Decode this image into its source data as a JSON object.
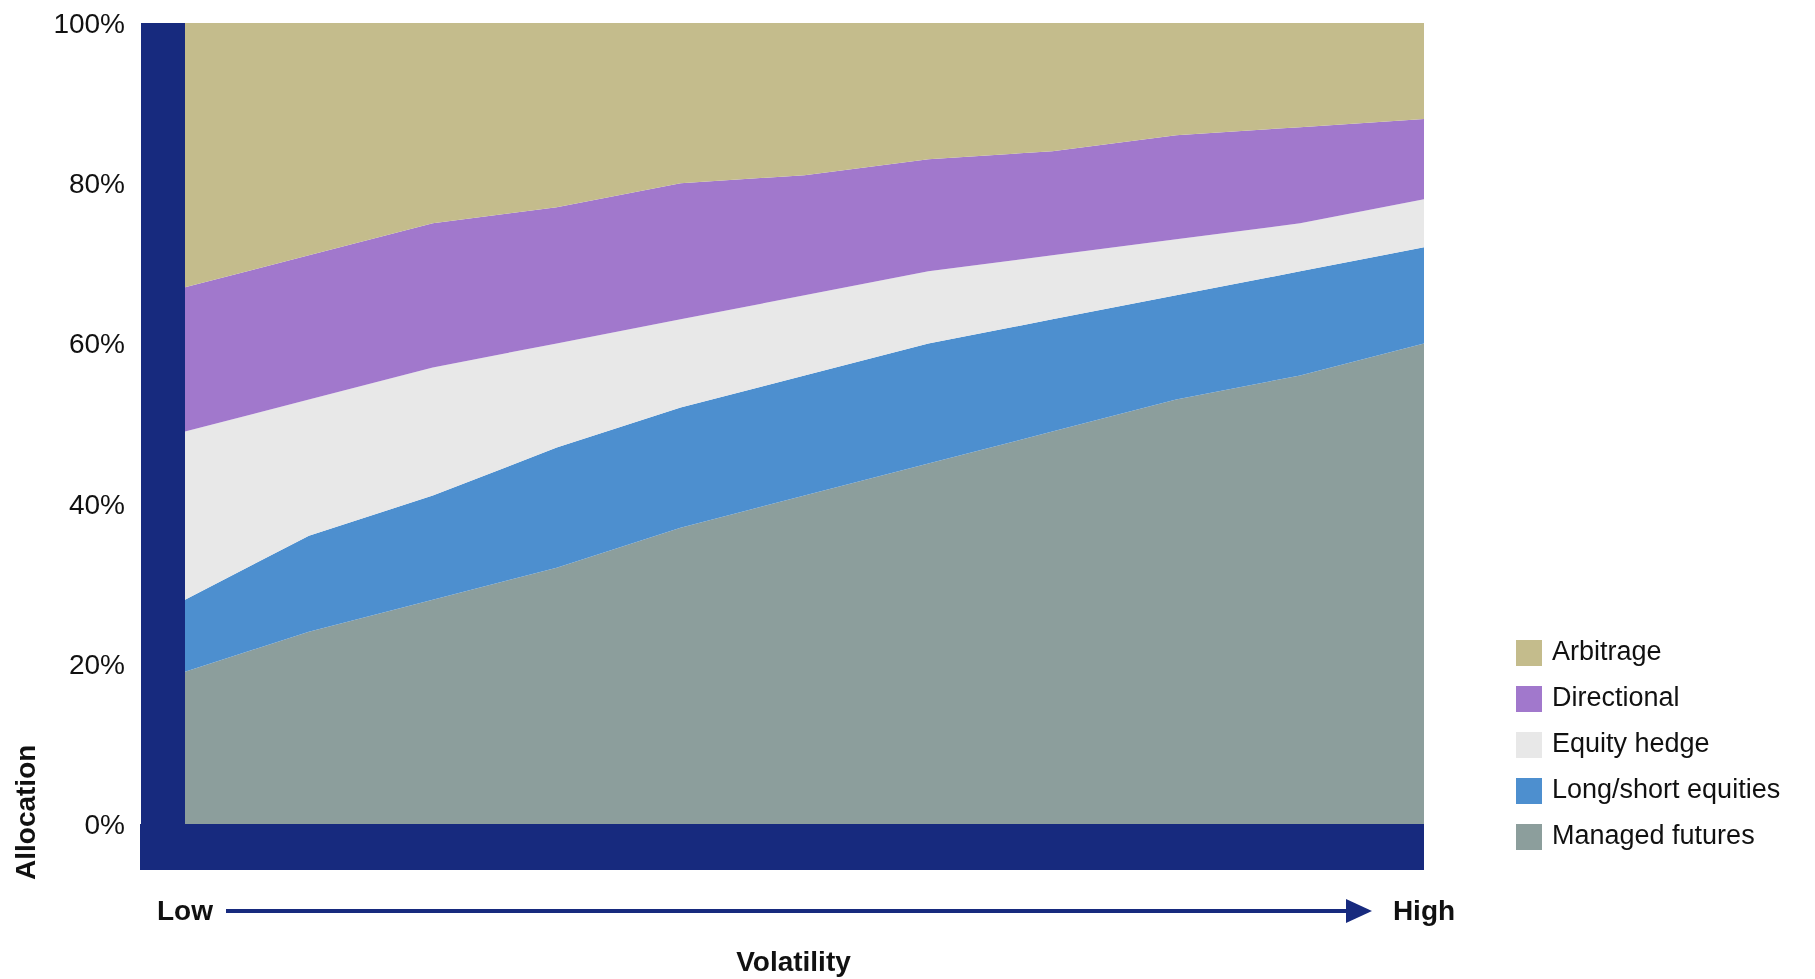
{
  "chart_data": {
    "type": "area",
    "stacked": true,
    "xlabel": "Volatility",
    "ylabel": "Allocation",
    "categories": [
      "Low",
      null,
      null,
      null,
      null,
      null,
      null,
      null,
      null,
      null,
      "High"
    ],
    "ylim": [
      0,
      100
    ],
    "yticks": [
      {
        "value": 0,
        "label": "0%"
      },
      {
        "value": 20,
        "label": "20%"
      },
      {
        "value": 40,
        "label": "40%"
      },
      {
        "value": 60,
        "label": "60%"
      },
      {
        "value": 80,
        "label": "80%"
      },
      {
        "value": 100,
        "label": "100%"
      }
    ],
    "legend": "bottom right",
    "series": [
      {
        "name": "Managed futures",
        "color": "#8c9e9c",
        "values": [
          19,
          24,
          28,
          32,
          37,
          41,
          45,
          49,
          53,
          56,
          60
        ]
      },
      {
        "name": "Long/short equities",
        "color": "#4d8fcf",
        "values": [
          9,
          12,
          13,
          15,
          15,
          15,
          15,
          14,
          13,
          13,
          12
        ]
      },
      {
        "name": "Equity hedge",
        "color": "#e8e8e8",
        "values": [
          21,
          17,
          16,
          13,
          11,
          10,
          9,
          8,
          7,
          6,
          6
        ]
      },
      {
        "name": "Directional",
        "color": "#a178cc",
        "values": [
          18,
          18,
          18,
          17,
          17,
          15,
          14,
          13,
          13,
          12,
          10
        ]
      },
      {
        "name": "Arbitrage",
        "color": "#c4bc8c",
        "values": [
          33,
          29,
          25,
          23,
          20,
          19,
          17,
          16,
          14,
          13,
          12
        ]
      }
    ]
  }
}
